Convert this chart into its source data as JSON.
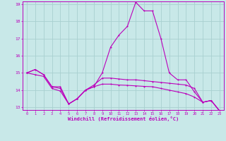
{
  "xlabel": "Windchill (Refroidissement éolien,°C)",
  "background_color": "#c8e8e8",
  "grid_color": "#a8d0d0",
  "line_color": "#bb00bb",
  "x_hours": [
    0,
    1,
    2,
    3,
    4,
    5,
    6,
    7,
    8,
    9,
    10,
    11,
    12,
    13,
    14,
    15,
    16,
    17,
    18,
    19,
    20,
    21,
    22,
    23
  ],
  "series1": [
    15.0,
    15.2,
    14.9,
    14.2,
    14.2,
    13.2,
    13.5,
    14.0,
    14.2,
    15.0,
    16.5,
    17.2,
    17.7,
    19.1,
    18.6,
    18.6,
    17.0,
    15.0,
    14.6,
    14.6,
    13.9,
    13.3,
    13.4,
    12.8
  ],
  "series2": [
    15.0,
    15.2,
    14.9,
    14.2,
    14.1,
    13.2,
    13.5,
    14.0,
    14.3,
    14.7,
    14.7,
    14.65,
    14.6,
    14.6,
    14.55,
    14.5,
    14.45,
    14.4,
    14.35,
    14.3,
    14.1,
    13.3,
    13.4,
    12.8
  ],
  "series3": [
    15.0,
    14.9,
    14.8,
    14.1,
    13.95,
    13.2,
    13.5,
    14.0,
    14.2,
    14.35,
    14.35,
    14.3,
    14.28,
    14.25,
    14.22,
    14.2,
    14.1,
    14.0,
    13.9,
    13.8,
    13.6,
    13.3,
    13.4,
    12.8
  ],
  "ylim_min": 13.0,
  "ylim_max": 19.0,
  "yticks": [
    13,
    14,
    15,
    16,
    17,
    18,
    19
  ]
}
